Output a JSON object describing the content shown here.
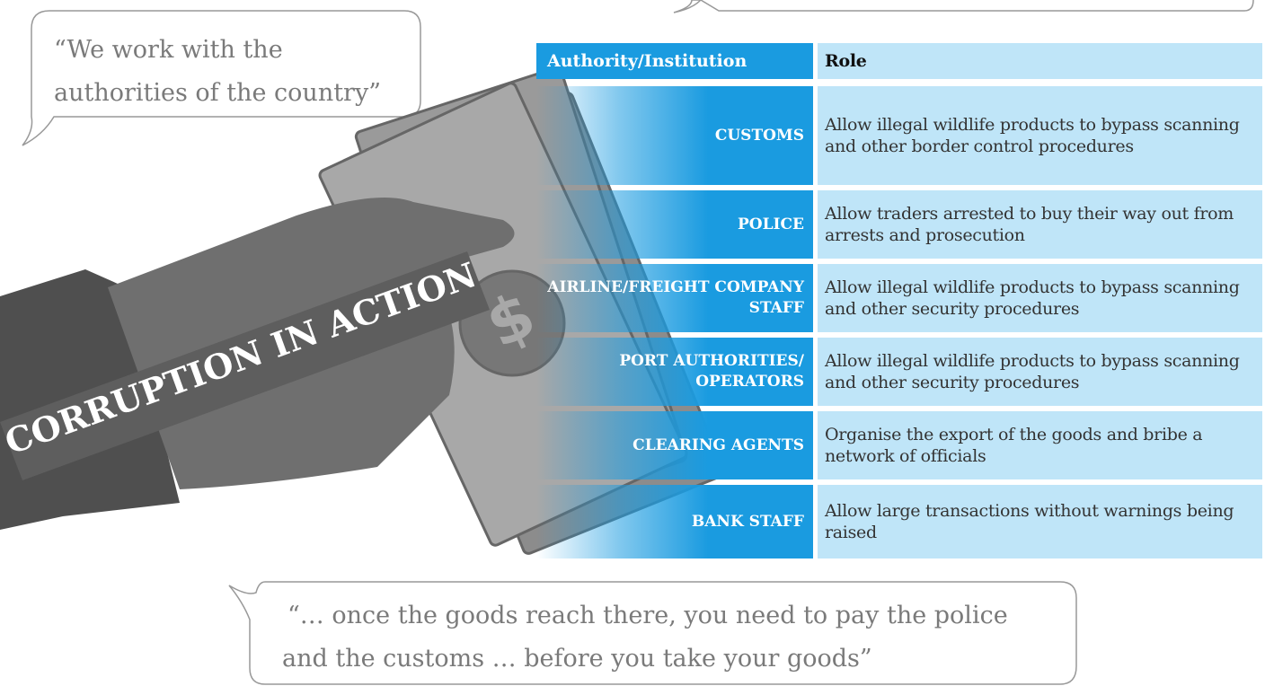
{
  "banner": "CORRUPTION  IN ACTION",
  "quotes": [
    {
      "lines": [
        "“We work with the",
        "authorities of the country”"
      ]
    },
    {
      "lines": [
        "“… once the goods reach there, you need to pay the police",
        "and the customs … before you take your goods”"
      ]
    }
  ],
  "table": {
    "header": [
      "Authority/Institution",
      "Role"
    ],
    "rows": [
      [
        "CUSTOMS",
        "Allow illegal wildlife products to bypass scanning and other border control procedures"
      ],
      [
        "POLICE",
        "Allow traders arrested to buy their way out from arrests and prosecution"
      ],
      [
        "AIRLINE/FREIGHT COMPANY STAFF",
        "Allow illegal wildlife products to bypass scanning and other security procedures"
      ],
      [
        "PORT AUTHORITIES/ OPERATORS",
        "Allow illegal wildlife products to bypass scanning and other security procedures"
      ],
      [
        "CLEARING AGENTS",
        "Organise the export of the goods and bribe a network of officials"
      ],
      [
        "BANK STAFF",
        "Allow large transactions without warnings being raised"
      ]
    ]
  }
}
